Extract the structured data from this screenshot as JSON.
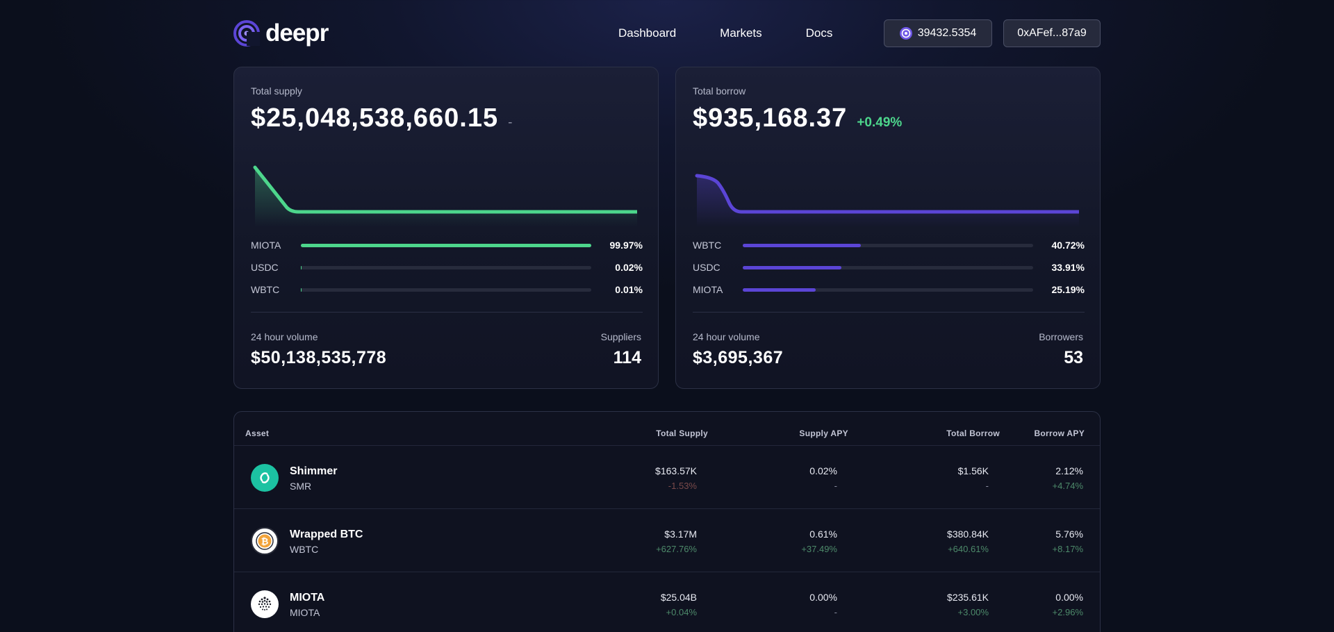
{
  "app": {
    "name": "deepr"
  },
  "nav": {
    "items": [
      "Dashboard",
      "Markets",
      "Docs"
    ]
  },
  "wallet": {
    "balance": "39432.5354",
    "address": "0xAFef...87a9"
  },
  "colors": {
    "green": "#4dd68c",
    "purple": "#5b45d6",
    "track": "#272b3c"
  },
  "supply": {
    "label": "Total supply",
    "value": "$25,048,538,660.15",
    "change": "-",
    "assets": [
      {
        "name": "MIOTA",
        "pct": "99.97%",
        "fraction": 0.9997
      },
      {
        "name": "USDC",
        "pct": "0.02%",
        "fraction": 0.0002
      },
      {
        "name": "WBTC",
        "pct": "0.01%",
        "fraction": 0.0001
      }
    ],
    "volume_label": "24 hour volume",
    "volume": "$50,138,535,778",
    "count_label": "Suppliers",
    "count": "114"
  },
  "borrow": {
    "label": "Total borrow",
    "value": "$935,168.37",
    "change": "+0.49%",
    "assets": [
      {
        "name": "WBTC",
        "pct": "40.72%",
        "fraction": 0.4072
      },
      {
        "name": "USDC",
        "pct": "33.91%",
        "fraction": 0.3391
      },
      {
        "name": "MIOTA",
        "pct": "25.19%",
        "fraction": 0.2519
      }
    ],
    "volume_label": "24 hour volume",
    "volume": "$3,695,367",
    "count_label": "Borrowers",
    "count": "53"
  },
  "table": {
    "headers": [
      "Asset",
      "Total Supply",
      "Supply APY",
      "Total Borrow",
      "Borrow APY"
    ],
    "rows": [
      {
        "name": "Shimmer",
        "symbol": "SMR",
        "icon": "shimmer-icon",
        "total_supply": "$163.57K",
        "total_supply_change": "-1.53%",
        "supply_apy": "0.02%",
        "supply_apy_change": "-",
        "total_borrow": "$1.56K",
        "total_borrow_change": "-",
        "borrow_apy": "2.12%",
        "borrow_apy_change": "+4.74%"
      },
      {
        "name": "Wrapped BTC",
        "symbol": "WBTC",
        "icon": "bitcoin-icon",
        "total_supply": "$3.17M",
        "total_supply_change": "+627.76%",
        "supply_apy": "0.61%",
        "supply_apy_change": "+37.49%",
        "total_borrow": "$380.84K",
        "total_borrow_change": "+640.61%",
        "borrow_apy": "5.76%",
        "borrow_apy_change": "+8.17%"
      },
      {
        "name": "MIOTA",
        "symbol": "MIOTA",
        "icon": "iota-icon",
        "total_supply": "$25.04B",
        "total_supply_change": "+0.04%",
        "supply_apy": "0.00%",
        "supply_apy_change": "-",
        "total_borrow": "$235.61K",
        "total_borrow_change": "+3.00%",
        "borrow_apy": "0.00%",
        "borrow_apy_change": "+2.96%"
      }
    ]
  }
}
